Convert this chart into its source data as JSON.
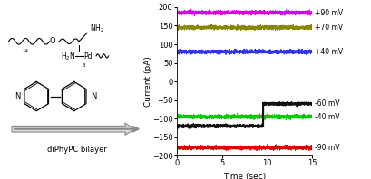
{
  "ylim": [
    -200,
    200
  ],
  "xlim": [
    0,
    15
  ],
  "yticks": [
    -200,
    -150,
    -100,
    -50,
    0,
    50,
    100,
    150,
    200
  ],
  "xticks": [
    0,
    5,
    10,
    15
  ],
  "xlabel": "Time (sec)",
  "ylabel": "Current (pA)",
  "lines": [
    {
      "voltage": "+90 mV",
      "color": "#dd00dd",
      "base_level": 185,
      "noise": 2.5,
      "step": false,
      "step_time": null,
      "step_from": null,
      "step_to": null
    },
    {
      "voltage": "+70 mV",
      "color": "#888800",
      "base_level": 145,
      "noise": 2.5,
      "step": false,
      "step_time": null,
      "step_from": null,
      "step_to": null
    },
    {
      "voltage": "+40 mV",
      "color": "#3333ee",
      "base_level": 80,
      "noise": 2.5,
      "step": false,
      "step_time": null,
      "step_from": null,
      "step_to": null
    },
    {
      "voltage": "-40 mV",
      "color": "#00cc00",
      "base_level": -95,
      "noise": 2.5,
      "step": false,
      "step_time": null,
      "step_from": null,
      "step_to": null
    },
    {
      "voltage": "-60 mV",
      "color": "#111111",
      "base_level": -120,
      "noise": 2.0,
      "step": true,
      "step_time": 9.5,
      "step_from": -120,
      "step_to": -60
    },
    {
      "voltage": "-90 mV",
      "color": "#dd0000",
      "base_level": -178,
      "noise": 2.5,
      "step": false,
      "step_time": null,
      "step_from": null,
      "step_to": null
    }
  ],
  "label_fontsize": 6.5,
  "tick_fontsize": 6,
  "noise_seed": 42,
  "chem_label": "diPhyPC bilayer"
}
